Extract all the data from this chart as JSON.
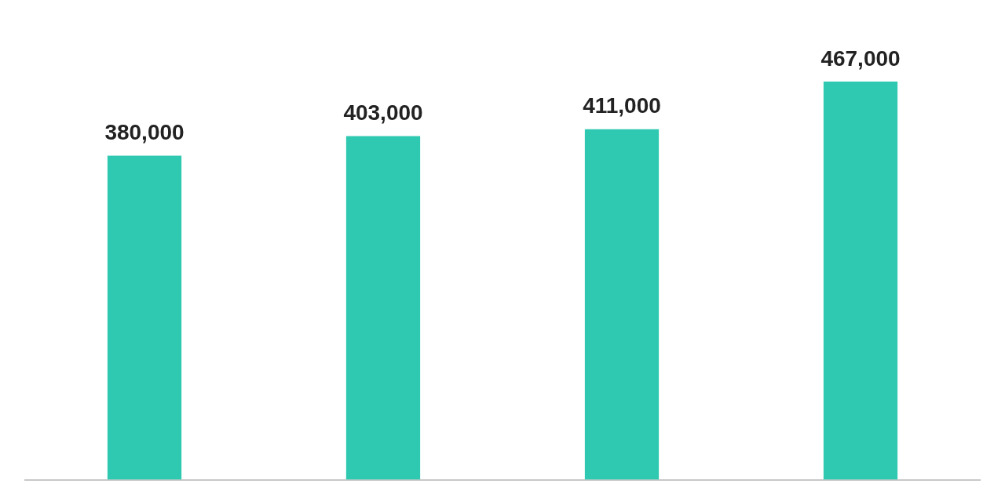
{
  "chart_data": {
    "type": "bar",
    "categories": [
      null,
      null,
      null,
      null
    ],
    "values": [
      380000,
      403000,
      411000,
      467000
    ],
    "color": "#2ec9b0",
    "value_labels": [
      "380,000",
      "403,000",
      "411,000",
      "467,000"
    ]
  }
}
